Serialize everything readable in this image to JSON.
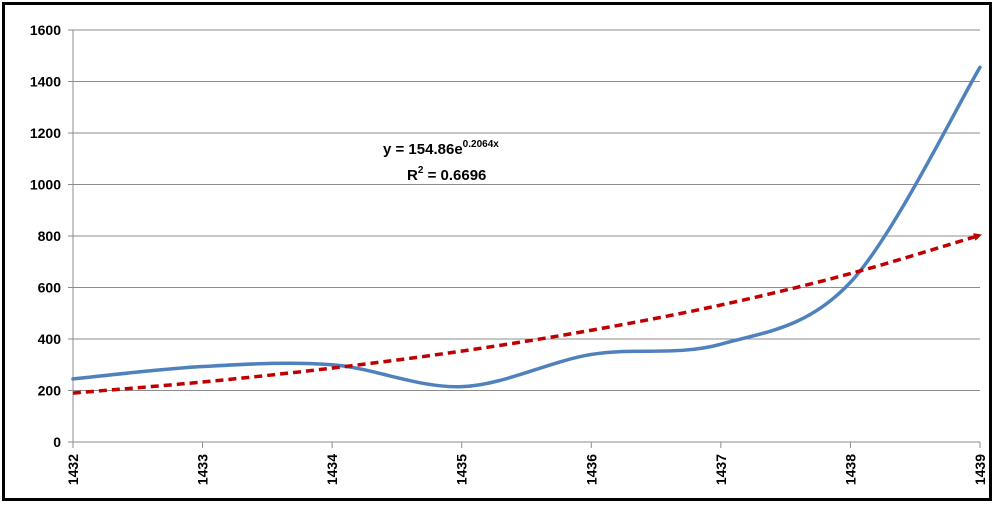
{
  "chart_data": {
    "type": "line",
    "title": "",
    "xlabel": "",
    "ylabel": "",
    "x": [
      "1432",
      "1433",
      "1434",
      "1435",
      "1436",
      "1437",
      "1438",
      "1439"
    ],
    "ylim": [
      0,
      1600
    ],
    "yticks": [
      "0",
      "200",
      "400",
      "600",
      "800",
      "1000",
      "1200",
      "1400",
      "1600"
    ],
    "grid": true,
    "legend": "none",
    "series": [
      {
        "values": [
          245,
          293,
          300,
          215,
          340,
          380,
          620,
          1455
        ],
        "color": "#4F81BD",
        "style": "smooth-solid"
      },
      {
        "trendline": "exponential",
        "values": [
          190,
          233,
          287,
          353,
          434,
          532,
          654,
          803
        ],
        "color": "#C00000",
        "style": "dashed-arrow"
      }
    ],
    "annotations": {
      "equation_prefix": "y = 154.86e",
      "equation_exponent": "0.2064x",
      "r2_prefix": "R",
      "r2_sup": "2",
      "r2_value": " = 0.6696"
    }
  }
}
